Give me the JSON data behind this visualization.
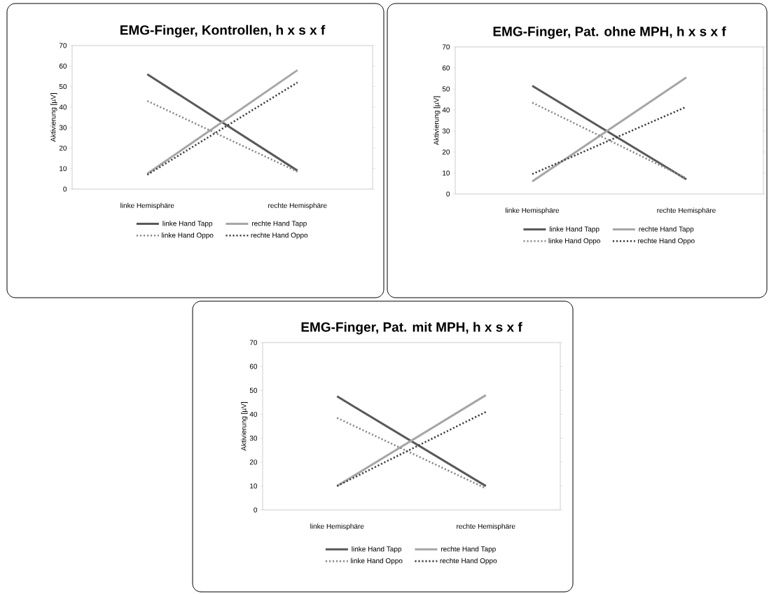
{
  "chart_data": [
    {
      "type": "line",
      "title": "EMG-Finger, Kontrollen, h x s x f",
      "ylabel": "Aktivierung [µV]",
      "categories": [
        "linke Hemisphäre",
        "rechte Hemisphäre"
      ],
      "ylim": [
        0,
        70
      ],
      "yticks": [
        0,
        10,
        20,
        30,
        40,
        50,
        60,
        70
      ],
      "legend": "bottom",
      "series": [
        {
          "name": "linke Hand Tapp",
          "color": "#595959",
          "line_style": "solid",
          "values": [
            56,
            9
          ]
        },
        {
          "name": "rechte Hand Tapp",
          "color": "#a6a6a6",
          "line_style": "solid",
          "values": [
            7.5,
            58
          ]
        },
        {
          "name": "linke Hand Oppo",
          "color": "#8c8c8c",
          "line_style": "dotted",
          "values": [
            43,
            8.5
          ]
        },
        {
          "name": "rechte Hand Oppo",
          "color": "#404040",
          "line_style": "dotted",
          "values": [
            7,
            52
          ]
        }
      ]
    },
    {
      "type": "line",
      "title": "EMG-Finger, Pat. ohne MPH, h x s x f",
      "ylabel": "Aktivierung [µV]",
      "categories": [
        "linke Hemisphäre",
        "rechte Hemisphäre"
      ],
      "ylim": [
        0,
        70
      ],
      "yticks": [
        0,
        10,
        20,
        30,
        40,
        50,
        60,
        70
      ],
      "legend": "bottom",
      "series": [
        {
          "name": "linke Hand Tapp",
          "color": "#595959",
          "line_style": "solid",
          "values": [
            51.5,
            7
          ]
        },
        {
          "name": "rechte Hand Tapp",
          "color": "#a6a6a6",
          "line_style": "solid",
          "values": [
            6,
            55.5
          ]
        },
        {
          "name": "linke Hand Oppo",
          "color": "#8c8c8c",
          "line_style": "dotted",
          "values": [
            43.5,
            7.5
          ]
        },
        {
          "name": "rechte Hand Oppo",
          "color": "#404040",
          "line_style": "dotted",
          "values": [
            9.5,
            41.5
          ]
        }
      ]
    },
    {
      "type": "line",
      "title": "EMG-Finger, Pat. mit MPH, h x s x f",
      "ylabel": "Aktivierung [µV]",
      "categories": [
        "linke Hemisphäre",
        "rechte Hemisphäre"
      ],
      "ylim": [
        0,
        70
      ],
      "yticks": [
        0,
        10,
        20,
        30,
        40,
        50,
        60,
        70
      ],
      "legend": "bottom",
      "series": [
        {
          "name": "linke Hand Tapp",
          "color": "#595959",
          "line_style": "solid",
          "values": [
            47.5,
            10
          ]
        },
        {
          "name": "rechte Hand Tapp",
          "color": "#a6a6a6",
          "line_style": "solid",
          "values": [
            10,
            48
          ]
        },
        {
          "name": "linke Hand Oppo",
          "color": "#8c8c8c",
          "line_style": "dotted",
          "values": [
            38.5,
            9
          ]
        },
        {
          "name": "rechte Hand Oppo",
          "color": "#404040",
          "line_style": "dotted",
          "values": [
            10,
            41
          ]
        }
      ]
    }
  ]
}
